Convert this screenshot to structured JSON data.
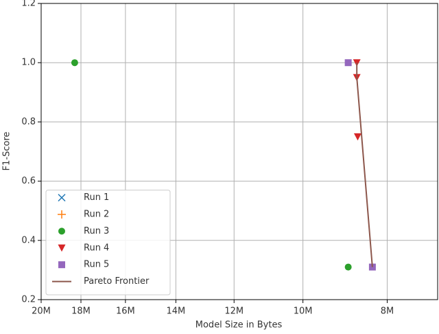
{
  "chart_data": {
    "type": "scatter",
    "xlabel": "Model Size in Bytes",
    "ylabel": "F1-Score",
    "xlim": [
      20000000,
      7000000
    ],
    "xscale": "log",
    "xticks": [
      {
        "value": 20000000,
        "label": "20M"
      },
      {
        "value": 18000000,
        "label": "18M"
      },
      {
        "value": 16000000,
        "label": "16M"
      },
      {
        "value": 14000000,
        "label": "14M"
      },
      {
        "value": 12000000,
        "label": "12M"
      },
      {
        "value": 10000000,
        "label": "10M"
      },
      {
        "value": 8000000,
        "label": "8M"
      }
    ],
    "ylim": [
      0.2,
      1.2
    ],
    "yticks": [
      0.2,
      0.4,
      0.6,
      0.8,
      {
        "value": 1,
        "label": "1.0"
      },
      1.2
    ],
    "grid": true,
    "legend": "lower left",
    "series": [
      {
        "name": "Run 1",
        "color": "#1f77b4",
        "marker": "x",
        "x": [],
        "values": []
      },
      {
        "name": "Run 2",
        "color": "#ff7f0e",
        "marker": "+",
        "x": [],
        "values": []
      },
      {
        "name": "Run 3",
        "color": "#2ca02c",
        "marker": "o",
        "x": [
          18300000,
          8870000
        ],
        "values": [
          1.0,
          0.31
        ]
      },
      {
        "name": "Run 4",
        "color": "#d62728",
        "marker": "v",
        "x": [
          8670000,
          8670000,
          8650000
        ],
        "values": [
          1.0,
          0.95,
          0.75
        ]
      },
      {
        "name": "Run 5",
        "color": "#9467bd",
        "marker": "s",
        "x": [
          8870000,
          8320000
        ],
        "values": [
          1.0,
          0.31
        ]
      },
      {
        "name": "Pareto Frontier",
        "color": "#8c564b",
        "marker": "line",
        "x": [
          8670000,
          8670000,
          8320000
        ],
        "values": [
          1.0,
          0.95,
          0.31
        ]
      }
    ]
  }
}
